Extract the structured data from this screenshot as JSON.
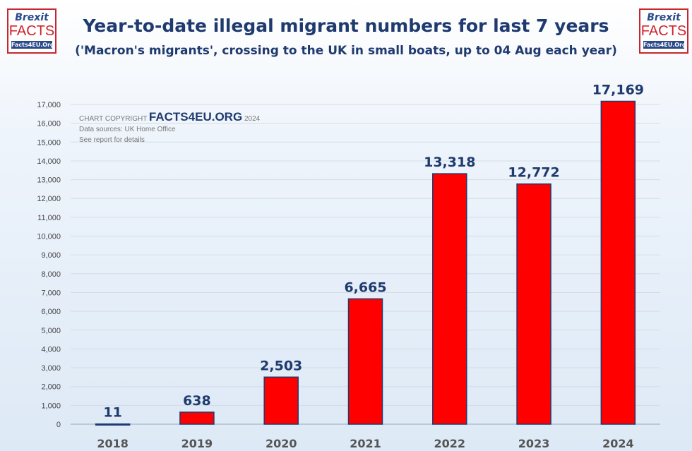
{
  "title": "Year-to-date illegal migrant numbers for last 7 years",
  "subtitle": "('Macron's migrants', crossing to the UK in small boats, up to 04 Aug each year)",
  "logo": {
    "top": "Brexit",
    "main": "FACTS",
    "site": "Facts4EU.Org"
  },
  "copyright": {
    "prefix": "CHART COPYRIGHT",
    "brand": "FACTS4EU.ORG",
    "year": "2024",
    "source": "Data sources: UK Home Office",
    "note": "See report for details"
  },
  "colors": {
    "bar": "#ff0000",
    "bar_border": "#1f3a6e",
    "label": "#1f3a6e"
  },
  "chart_data": {
    "type": "bar",
    "title": "Year-to-date illegal migrant numbers for last 7 years",
    "subtitle": "('Macron's migrants', crossing to the UK in small boats, up to 04 Aug each year)",
    "categories": [
      "2018",
      "2019",
      "2020",
      "2021",
      "2022",
      "2023",
      "2024"
    ],
    "values": [
      11,
      638,
      2503,
      6665,
      13318,
      12772,
      17169
    ],
    "data_labels": [
      "11",
      "638",
      "2,503",
      "6,665",
      "13,318",
      "12,772",
      "17,169"
    ],
    "yticks": [
      "0",
      "1,000",
      "2,000",
      "3,000",
      "4,000",
      "5,000",
      "6,000",
      "7,000",
      "8,000",
      "9,000",
      "10,000",
      "11,000",
      "12,000",
      "13,000",
      "14,000",
      "15,000",
      "16,000",
      "17,000"
    ],
    "ylim": [
      0,
      17000
    ],
    "grid": true,
    "xlabel": "",
    "ylabel": ""
  }
}
